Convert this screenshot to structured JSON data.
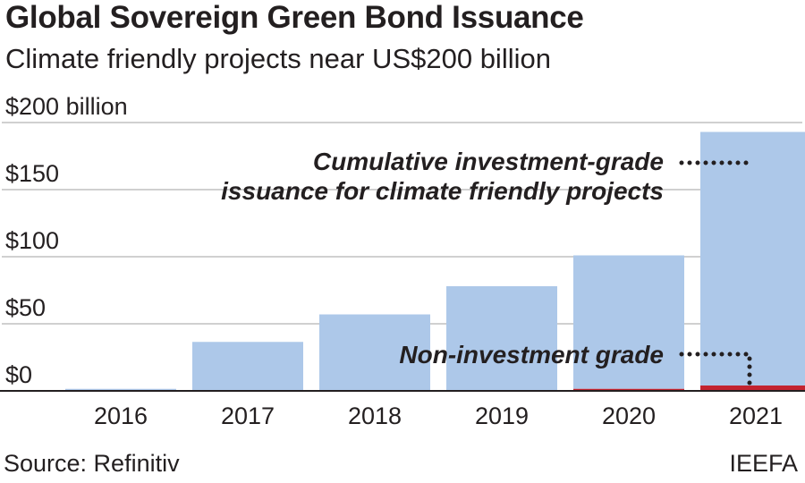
{
  "header": {
    "title": "Global Sovereign Green Bond Issuance",
    "subtitle": "Climate friendly projects near US$200 billion"
  },
  "footer": {
    "source": "Source: Refinitiv",
    "credit": "IEEFA"
  },
  "colors": {
    "investment_grade": "#adc8e9",
    "non_investment_grade": "#c3232f",
    "gridline": "#d0d0d0",
    "axis": "#231f20",
    "text": "#231f20"
  },
  "chart_data": {
    "type": "bar",
    "stacked": true,
    "categories": [
      "2016",
      "2017",
      "2018",
      "2019",
      "2020",
      "2021"
    ],
    "series": [
      {
        "name": "Non-investment grade",
        "values": [
          0,
          0.5,
          0.5,
          0.5,
          1.5,
          4
        ]
      },
      {
        "name": "Cumulative investment-grade issuance for climate friendly projects",
        "values": [
          1.5,
          36,
          56.5,
          77.5,
          99.5,
          189
        ]
      }
    ],
    "y_ticks": [
      {
        "value": 0,
        "label": "$0"
      },
      {
        "value": 50,
        "label": "$50"
      },
      {
        "value": 100,
        "label": "$100"
      },
      {
        "value": 150,
        "label": "$150"
      },
      {
        "value": 200,
        "label": "$200 billion"
      }
    ],
    "ylim": [
      0,
      200
    ],
    "grid": true,
    "annotations": [
      {
        "lines": [
          "Cumulative investment-grade",
          "issuance for climate friendly projects"
        ],
        "series_index": 1,
        "category_index": 5
      },
      {
        "lines": [
          "Non-investment grade"
        ],
        "series_index": 0,
        "category_index": 5
      }
    ]
  }
}
